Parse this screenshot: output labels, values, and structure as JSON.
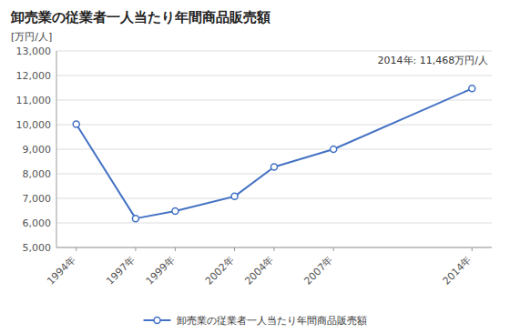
{
  "chart_data": {
    "type": "line",
    "title": "卸売業の従業者一人当たり年間商品販売額",
    "y_label": "[万円/人]",
    "annotation": "2014年: 11,468万円/人",
    "x": [
      1994,
      1997,
      1999,
      2002,
      2004,
      2007,
      2014
    ],
    "xlim": [
      1993,
      2015
    ],
    "xticks": [
      {
        "value": 1994,
        "label": "1994年"
      },
      {
        "value": 1997,
        "label": "1997年"
      },
      {
        "value": 1999,
        "label": "1999年"
      },
      {
        "value": 2002,
        "label": "2002年"
      },
      {
        "value": 2004,
        "label": "2004年"
      },
      {
        "value": 2007,
        "label": "2007年"
      },
      {
        "value": 2014,
        "label": "2014年"
      }
    ],
    "ylim": [
      5000,
      13000
    ],
    "yticks": [
      {
        "value": 5000,
        "label": "5,000"
      },
      {
        "value": 6000,
        "label": "6,000"
      },
      {
        "value": 7000,
        "label": "7,000"
      },
      {
        "value": 8000,
        "label": "8,000"
      },
      {
        "value": 9000,
        "label": "9,000"
      },
      {
        "value": 10000,
        "label": "10,000"
      },
      {
        "value": 11000,
        "label": "11,000"
      },
      {
        "value": 12000,
        "label": "12,000"
      },
      {
        "value": 13000,
        "label": "13,000"
      }
    ],
    "series": [
      {
        "name": "卸売業の従業者一人当たり年間商品販売額",
        "color": "#4472C4",
        "marker": "circle",
        "values": [
          10016,
          6180,
          6480,
          7080,
          8280,
          9000,
          11468
        ]
      }
    ],
    "grid": true,
    "legend": "bottom"
  }
}
